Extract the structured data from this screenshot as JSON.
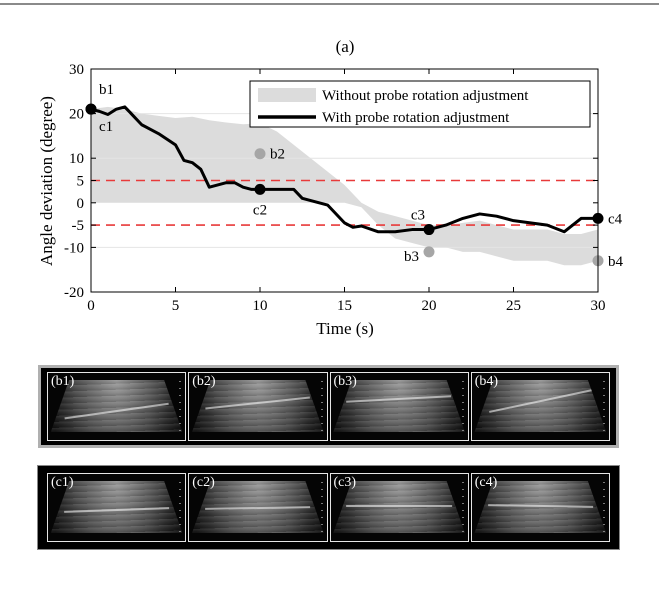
{
  "chart_data": {
    "type": "line",
    "title": "(a)",
    "xlabel": "Time (s)",
    "ylabel": "Angle deviation (degree)",
    "xlim": [
      0,
      30
    ],
    "ylim": [
      -20,
      30
    ],
    "xticks": [
      0,
      5,
      10,
      15,
      20,
      25,
      30
    ],
    "yticks": [
      30,
      20,
      10,
      5,
      0,
      -5,
      -10,
      -20
    ],
    "threshold_lines": [
      5,
      -5
    ],
    "threshold_color": "#e83a3a",
    "legend": {
      "position": "top-right",
      "entries": [
        "Without probe rotation adjustment",
        "With probe rotation adjustment"
      ]
    },
    "band": {
      "name": "Without probe rotation adjustment",
      "color": "#dcdcdc",
      "upper": [
        [
          0,
          21
        ],
        [
          1,
          21.5
        ],
        [
          2,
          21
        ],
        [
          3,
          20
        ],
        [
          4,
          19.5
        ],
        [
          5,
          19
        ],
        [
          6,
          19.3
        ],
        [
          7,
          18.5
        ],
        [
          8,
          18
        ],
        [
          9,
          17.6
        ],
        [
          10,
          17.8
        ],
        [
          11,
          16
        ],
        [
          12,
          13
        ],
        [
          13,
          10
        ],
        [
          14,
          7
        ],
        [
          15,
          4
        ],
        [
          16,
          0
        ],
        [
          17,
          -2
        ],
        [
          18,
          -3
        ],
        [
          19,
          -4
        ],
        [
          20,
          -5
        ],
        [
          21,
          -5
        ],
        [
          22,
          -4.5
        ],
        [
          23,
          -4
        ],
        [
          24,
          -5
        ],
        [
          25,
          -6
        ],
        [
          26,
          -6
        ],
        [
          27,
          -6
        ],
        [
          28,
          -7
        ],
        [
          29,
          -7
        ],
        [
          30,
          -6
        ]
      ],
      "lower": [
        [
          0,
          0
        ],
        [
          5,
          0
        ],
        [
          10,
          0
        ],
        [
          15,
          0
        ],
        [
          16,
          -1
        ],
        [
          17,
          -5
        ],
        [
          18,
          -8
        ],
        [
          19,
          -9
        ],
        [
          20,
          -10
        ],
        [
          21,
          -10
        ],
        [
          22,
          -11
        ],
        [
          23,
          -11
        ],
        [
          24,
          -12
        ],
        [
          25,
          -13
        ],
        [
          26,
          -13
        ],
        [
          27,
          -13
        ],
        [
          28,
          -14
        ],
        [
          29,
          -14
        ],
        [
          30,
          -13
        ]
      ]
    },
    "series": [
      {
        "name": "With probe rotation adjustment",
        "color": "#000000",
        "x": [
          0,
          0.5,
          1,
          1.5,
          2,
          2.5,
          3,
          4,
          5,
          5.5,
          6,
          6.5,
          7,
          7.5,
          8,
          8.5,
          9,
          9.5,
          10,
          11,
          12,
          12.5,
          13,
          14,
          15,
          15.5,
          16,
          17,
          18,
          19,
          20,
          21,
          22,
          23,
          24,
          25,
          26,
          27,
          28,
          29,
          30
        ],
        "y": [
          21,
          20.5,
          19.8,
          21,
          21.5,
          19.5,
          17.5,
          15.5,
          13,
          9.5,
          9,
          7.5,
          3.5,
          4,
          4.5,
          4.5,
          3.5,
          3,
          3,
          3,
          3,
          1,
          0.5,
          -0.5,
          -4.5,
          -5.5,
          -5.2,
          -6.5,
          -6.5,
          -6,
          -6,
          -5,
          -3.5,
          -2.5,
          -3,
          -4,
          -4.5,
          -5,
          -6.5,
          -3.5,
          -3.5
        ]
      }
    ],
    "markers": [
      {
        "label": "b1",
        "x": 0,
        "y": 21,
        "color": "#000000",
        "label_pos": "top-right"
      },
      {
        "label": "c1",
        "x": 0,
        "y": 21,
        "color": "#000000",
        "label_pos": "below-right"
      },
      {
        "label": "b2",
        "x": 10,
        "y": 11,
        "color": "#a6a6a6",
        "label_pos": "right"
      },
      {
        "label": "c2",
        "x": 10,
        "y": 3,
        "color": "#000000",
        "label_pos": "below"
      },
      {
        "label": "c3",
        "x": 20,
        "y": -6,
        "color": "#000000",
        "label_pos": "top-left"
      },
      {
        "label": "b3",
        "x": 20,
        "y": -11,
        "color": "#a6a6a6",
        "label_pos": "left"
      },
      {
        "label": "c4",
        "x": 30,
        "y": -3.5,
        "color": "#000000",
        "label_pos": "right"
      },
      {
        "label": "b4",
        "x": 30,
        "y": -13,
        "color": "#a6a6a6",
        "label_pos": "right"
      }
    ]
  },
  "panels": {
    "b": {
      "border_color": "#b0b0b0",
      "frames": [
        "(b1)",
        "(b2)",
        "(b3)",
        "(b4)"
      ]
    },
    "c": {
      "border_color": "#000000",
      "frames": [
        "(c1)",
        "(c2)",
        "(c3)",
        "(c4)"
      ]
    }
  }
}
